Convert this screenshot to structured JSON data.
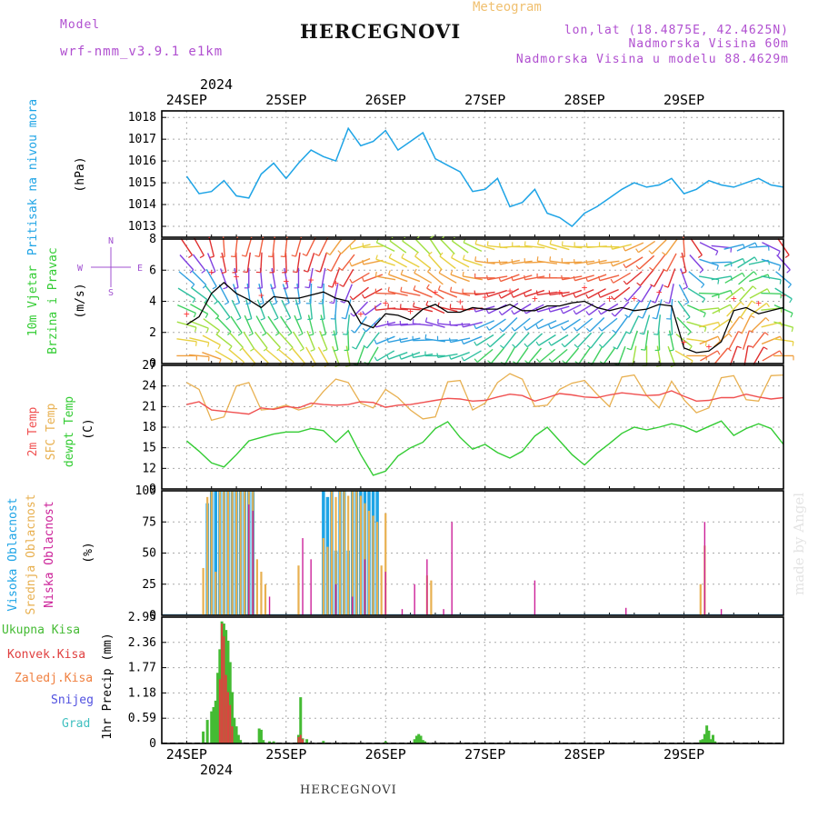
{
  "header": {
    "title": "HERCEGNOVI",
    "model_label": "Model",
    "model_name": "wrf-nmm_v3.9.1 e1km",
    "meteogram_label": "Meteogram",
    "coords": "lon,lat (18.4875E, 42.4625N)",
    "elevation": "Nadmorska Visina 60m",
    "elevation_model": "Nadmorska Visina u modelu 88.4629m"
  },
  "footer": {
    "location": "HERCEGNOVI",
    "credit": "made by Angel"
  },
  "colors": {
    "pressure": "#1ea4e6",
    "temp2m": "#f05050",
    "sfc_temp": "#e8b050",
    "dewpt": "#33cc33",
    "cloud_high": "#1ea4e6",
    "cloud_mid": "#e8b050",
    "cloud_low": "#cc2299",
    "precip_total": "#44bb33",
    "precip_conv": "#e04040",
    "precip_frz": "#f08040",
    "precip_snow": "#5050e0",
    "precip_hail": "#40c0c0",
    "wind_speed": "#000000",
    "wind_gust": "#ff3333"
  },
  "chart_data": [
    {
      "type": "line",
      "panel": "pressure",
      "ylabel_main": "Pritisak na nivou mora",
      "ylabel_unit": "(hPa)",
      "ylim": [
        1012.5,
        1018.3
      ],
      "yticks": [
        "1013",
        "1014",
        "1015",
        "1016",
        "1017",
        "1018"
      ],
      "xticks_top": [
        "24SEP",
        "25SEP",
        "26SEP",
        "27SEP",
        "28SEP",
        "29SEP"
      ],
      "year_label": "2024",
      "x_hours": [
        0,
        3,
        6,
        9,
        12,
        15,
        18,
        21,
        24,
        27,
        30,
        33,
        36,
        39,
        42,
        45,
        48,
        51,
        54,
        57,
        60,
        63,
        66,
        69,
        72,
        75,
        78,
        81,
        84,
        87,
        90,
        93,
        96,
        99,
        102,
        105,
        108,
        111,
        114,
        117,
        120,
        123,
        126,
        129,
        132,
        135,
        138,
        141,
        144
      ],
      "series": [
        {
          "name": "Pritisak na nivou mora",
          "values": [
            1015.3,
            1014.5,
            1014.6,
            1015.1,
            1014.4,
            1014.3,
            1015.4,
            1015.9,
            1015.2,
            1015.9,
            1016.5,
            1016.2,
            1016.0,
            1017.5,
            1016.7,
            1016.9,
            1017.4,
            1016.5,
            1016.9,
            1017.3,
            1016.1,
            1015.8,
            1015.5,
            1014.6,
            1014.7,
            1015.2,
            1013.9,
            1014.1,
            1014.7,
            1013.6,
            1013.4,
            1013.0,
            1013.6,
            1013.9,
            1014.3,
            1014.7,
            1015.0,
            1014.8,
            1014.9,
            1015.2,
            1014.5,
            1014.7,
            1015.1,
            1014.9,
            1014.8,
            1015.0,
            1015.2,
            1014.9,
            1014.8
          ]
        }
      ]
    },
    {
      "type": "line",
      "panel": "wind",
      "ylabel_main": "10m Vjetar",
      "ylabel_sub": "Brzina i Pravac",
      "ylabel_unit": "(m/s)",
      "compass": [
        "N",
        "W",
        "E",
        "S"
      ],
      "ylim": [
        0,
        8
      ],
      "yticks": [
        "0",
        "2",
        "4",
        "6",
        "8"
      ],
      "series": [
        {
          "name": "wind_speed",
          "values": [
            2.5,
            3.0,
            4.5,
            5.2,
            4.5,
            4.1,
            3.6,
            4.3,
            4.2,
            4.2,
            4.4,
            4.6,
            4.2,
            4.0,
            2.6,
            2.3,
            3.2,
            3.1,
            2.8,
            3.5,
            3.8,
            3.3,
            3.3,
            3.6,
            3.5,
            3.5,
            3.8,
            3.4,
            3.4,
            3.7,
            3.7,
            3.9,
            4.0,
            3.6,
            3.4,
            3.6,
            3.4,
            3.5,
            3.8,
            3.7,
            1.0,
            0.7,
            0.8,
            1.4,
            3.4,
            3.6,
            3.2,
            3.4,
            3.6
          ]
        },
        {
          "name": "wind_gust",
          "values": [
            3.2,
            4.0,
            5.9,
            6.3,
            5.6,
            5.0,
            4.4,
            5.4,
            5.3,
            5.2,
            5.4,
            5.7,
            5.2,
            4.8,
            3.2,
            2.7,
            3.9,
            3.8,
            3.4,
            4.2,
            4.6,
            4.0,
            4.0,
            4.4,
            4.3,
            4.3,
            4.7,
            4.2,
            4.2,
            4.6,
            4.6,
            4.8,
            4.9,
            4.4,
            4.2,
            4.4,
            4.2,
            4.3,
            4.6,
            4.5,
            1.4,
            1.0,
            1.1,
            1.8,
            4.2,
            4.4,
            3.9,
            4.2,
            4.4
          ]
        }
      ],
      "barb_direction_deg": [
        90,
        95,
        110,
        120,
        130,
        140,
        135,
        130,
        130,
        140,
        150,
        150,
        160,
        170,
        200,
        210,
        240,
        250,
        250,
        260,
        270,
        260,
        250,
        240,
        230,
        220,
        210,
        215,
        220,
        230,
        230,
        220,
        215,
        210,
        215,
        200,
        190,
        180,
        170,
        160,
        120,
        90,
        60,
        40,
        20,
        10,
        30,
        60,
        90
      ]
    },
    {
      "type": "line",
      "panel": "temperature",
      "ylabel_series": [
        "2m Temp",
        "SFC Temp",
        "dewpt Temp"
      ],
      "ylabel_unit": "(C)",
      "ylim": [
        9,
        27
      ],
      "yticks": [
        "9",
        "12",
        "15",
        "18",
        "21",
        "24",
        "27"
      ],
      "series": [
        {
          "name": "2m Temp",
          "values": [
            21.3,
            21.7,
            20.5,
            20.3,
            20.1,
            19.9,
            20.8,
            20.6,
            21.0,
            20.8,
            21.5,
            21.3,
            21.2,
            21.3,
            21.7,
            21.6,
            20.9,
            21.2,
            21.3,
            21.6,
            21.9,
            22.2,
            22.1,
            21.8,
            21.9,
            22.4,
            22.8,
            22.6,
            21.8,
            22.3,
            22.9,
            22.7,
            22.4,
            22.3,
            22.7,
            23.0,
            22.8,
            22.6,
            22.7,
            23.3,
            22.5,
            21.8,
            21.9,
            22.3,
            22.3,
            22.8,
            22.4,
            22.1,
            22.3
          ]
        },
        {
          "name": "SFC Temp",
          "values": [
            24.5,
            23.5,
            19.0,
            19.5,
            24.0,
            24.5,
            20.5,
            20.7,
            21.2,
            20.5,
            21.0,
            23.2,
            25.0,
            24.5,
            21.5,
            20.8,
            23.5,
            22.3,
            20.5,
            19.2,
            19.5,
            24.6,
            24.8,
            20.5,
            21.5,
            24.5,
            25.8,
            25.0,
            21.0,
            21.2,
            23.5,
            24.4,
            24.8,
            22.8,
            21.0,
            25.3,
            25.6,
            22.6,
            20.8,
            24.7,
            22.0,
            20.1,
            20.8,
            25.2,
            25.5,
            22.0,
            21.8,
            25.5,
            25.6
          ]
        },
        {
          "name": "dewpt Temp",
          "values": [
            16.0,
            14.5,
            12.8,
            12.2,
            14.0,
            16.0,
            16.5,
            17.0,
            17.3,
            17.3,
            17.8,
            17.5,
            15.8,
            17.5,
            14.0,
            11.0,
            11.6,
            13.8,
            15.0,
            15.8,
            17.8,
            18.8,
            16.5,
            14.8,
            15.5,
            14.3,
            13.5,
            14.5,
            16.7,
            18.0,
            16.0,
            14.0,
            12.5,
            14.2,
            15.6,
            17.1,
            18.0,
            17.6,
            18.0,
            18.5,
            18.1,
            17.3,
            18.1,
            18.9,
            16.8,
            17.8,
            18.5,
            17.8,
            15.5
          ]
        }
      ]
    },
    {
      "type": "bar",
      "panel": "clouds",
      "ylabel_series": [
        "Visoka Oblacnost",
        "Srednja Oblacnost",
        "Niska Oblacnost"
      ],
      "ylabel_unit": "(%)",
      "ylim": [
        0,
        100
      ],
      "yticks": [
        "0",
        "25",
        "50",
        "75",
        "100"
      ],
      "series": [
        {
          "name": "Visoka Oblacnost",
          "x_hours": [
            5,
            6,
            7,
            8,
            9,
            10,
            11,
            12,
            13,
            14,
            15,
            16,
            33,
            34,
            35,
            36,
            37,
            38,
            39,
            40,
            41,
            42,
            43,
            44,
            45,
            46
          ],
          "values": [
            90,
            100,
            100,
            100,
            100,
            100,
            100,
            100,
            100,
            100,
            100,
            100,
            100,
            95,
            100,
            52,
            100,
            100,
            52,
            100,
            100,
            100,
            100,
            100,
            100,
            100
          ]
        },
        {
          "name": "Srednja Oblacnost",
          "x_hours": [
            4,
            5,
            6,
            7,
            8,
            9,
            10,
            11,
            12,
            13,
            14,
            15,
            16,
            17,
            18,
            19,
            27,
            33,
            34,
            35,
            36,
            37,
            38,
            39,
            40,
            41,
            42,
            43,
            44,
            45,
            46,
            47,
            48,
            58,
            59,
            124,
            125
          ],
          "values": [
            38,
            95,
            100,
            35,
            100,
            100,
            100,
            100,
            100,
            100,
            100,
            100,
            100,
            45,
            35,
            25,
            40,
            62,
            55,
            100,
            95,
            100,
            100,
            96,
            100,
            100,
            96,
            90,
            84,
            80,
            75,
            40,
            82,
            32,
            28,
            25,
            56
          ]
        },
        {
          "name": "Niska Oblacnost",
          "x_hours": [
            15,
            16,
            20,
            28,
            30,
            36,
            40,
            43,
            48,
            52,
            55,
            58,
            62,
            64,
            84,
            106,
            125,
            129
          ],
          "values": [
            89,
            84,
            15,
            62,
            45,
            25,
            15,
            45,
            35,
            5,
            25,
            45,
            5,
            75,
            28,
            6,
            75,
            5
          ]
        }
      ]
    },
    {
      "type": "bar",
      "panel": "precipitation",
      "ylabel_series": [
        "Ukupna Kisa",
        "Konvek.Kisa",
        "Zaledj.Kisa",
        "Snijeg",
        "Grad"
      ],
      "ylabel_unit": "1hr Precip (mm)",
      "ylim": [
        0,
        2.95
      ],
      "yticks": [
        "0",
        "0.59",
        "1.18",
        "1.77",
        "2.36",
        "2.95"
      ],
      "xticks_bottom": [
        "24SEP",
        "25SEP",
        "26SEP",
        "27SEP",
        "28SEP",
        "29SEP"
      ],
      "series": [
        {
          "name": "Ukupna Kisa",
          "x_hours": [
            4,
            5,
            6,
            6.5,
            7,
            7.5,
            8,
            8.5,
            9,
            9.5,
            10,
            10.5,
            11,
            11.5,
            12,
            12.5,
            13,
            17.5,
            18,
            18.5,
            20,
            21,
            27,
            27.5,
            28,
            29,
            33,
            48,
            55,
            55.5,
            56,
            56.5,
            57,
            57.5,
            58,
            124,
            124.5,
            125,
            125.5,
            126,
            126.5,
            127,
            127.5
          ],
          "values": [
            0.28,
            0.55,
            0.75,
            0.85,
            1.0,
            1.65,
            2.2,
            2.85,
            2.8,
            2.65,
            2.4,
            1.9,
            1.2,
            0.6,
            0.4,
            0.2,
            0.08,
            0.35,
            0.32,
            0.08,
            0.05,
            0.05,
            0.2,
            1.08,
            0.12,
            0.1,
            0.06,
            0.05,
            0.1,
            0.18,
            0.22,
            0.18,
            0.08,
            0.05,
            0.02,
            0.08,
            0.1,
            0.22,
            0.42,
            0.3,
            0.1,
            0.2,
            0.05
          ]
        },
        {
          "name": "Konvek.Kisa",
          "x_hours": [
            8,
            8.5,
            9,
            9.5,
            10,
            10.5,
            11,
            27,
            27.5,
            28
          ],
          "values": [
            1.5,
            2.8,
            2.5,
            1.6,
            1.2,
            0.9,
            0.4,
            0.15,
            0.2,
            0.1
          ]
        }
      ]
    }
  ]
}
